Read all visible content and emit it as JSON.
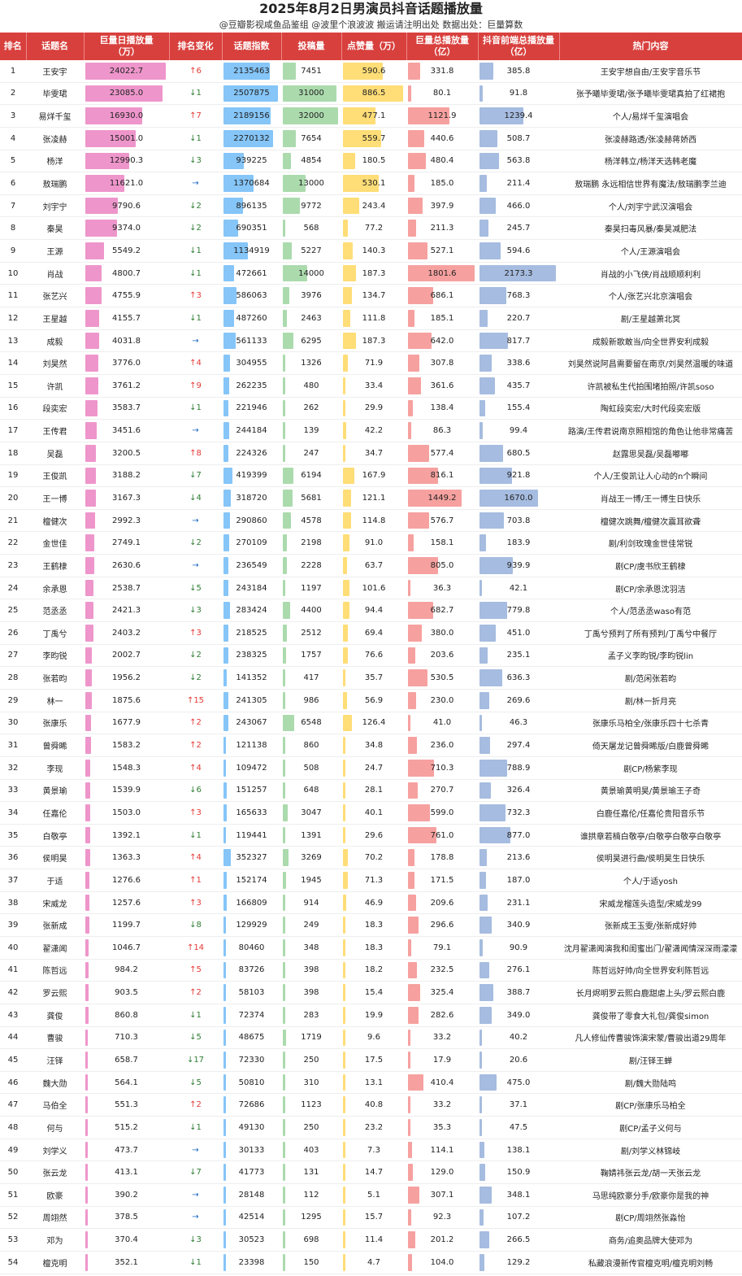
{
  "title": "2025年8月2日男演员抖音话题播放量",
  "subtitle": "@豆瓣影视咸鱼品鉴组 @波里个浪波波   搬运请注明出处   数据出处：巨量算数",
  "headers": [
    "排名",
    "话题名",
    "巨量日播放量\n（万）",
    "排名变化",
    "话题指数",
    "投稿量",
    "点赞量（万）",
    "巨量总播放量\n（亿）",
    "抖音前端总播放量\n（亿）",
    "热门内容"
  ],
  "colors": {
    "header": "#d8403d",
    "daily": "#e040a0",
    "index": "#2196f3",
    "posts": "#66bb6a",
    "likes": "#ffc107",
    "total": "#ef5350",
    "front": "#5c85c7"
  },
  "rows": [
    [
      "1",
      "王安宇",
      "24022.7",
      "↑6",
      "2135463",
      "7451",
      "590.6",
      "331.8",
      "385.8",
      "王安宇想自由/王安宇音乐节"
    ],
    [
      "2",
      "毕雯珺",
      "23085.0",
      "↓1",
      "2507875",
      "31000",
      "886.5",
      "80.1",
      "91.8",
      "张予曦毕雯珺/张予曦毕雯珺真拍了红裙抱"
    ],
    [
      "3",
      "易烊千玺",
      "16930.0",
      "↑7",
      "2189156",
      "32000",
      "477.1",
      "1121.9",
      "1239.4",
      "个人/易烊千玺演唱会"
    ],
    [
      "4",
      "张凌赫",
      "15001.0",
      "↓1",
      "2270132",
      "7654",
      "559.7",
      "440.6",
      "508.7",
      "张凌赫路透/张凌赫蒋娇西"
    ],
    [
      "5",
      "杨洋",
      "12990.3",
      "↓3",
      "939225",
      "4854",
      "180.5",
      "480.4",
      "563.8",
      "杨洋韩立/杨洋天选韩老魔"
    ],
    [
      "6",
      "敖瑞鹏",
      "11621.0",
      "→",
      "1370684",
      "13000",
      "530.1",
      "185.0",
      "211.4",
      "敖瑞鹏 永远相信世界有魔法/敖瑞鹏李兰迪"
    ],
    [
      "7",
      "刘宇宁",
      "9790.6",
      "↓2",
      "896135",
      "9772",
      "243.4",
      "397.9",
      "466.0",
      "个人/刘宇宁武汉演唱会"
    ],
    [
      "8",
      "秦昊",
      "9374.0",
      "↓2",
      "690351",
      "568",
      "77.2",
      "211.3",
      "245.7",
      "秦昊扫毒风暴/秦昊减肥法"
    ],
    [
      "9",
      "王源",
      "5549.2",
      "↓1",
      "1134919",
      "5227",
      "140.3",
      "527.1",
      "594.6",
      "个人/王源演唱会"
    ],
    [
      "10",
      "肖战",
      "4800.7",
      "↓1",
      "472661",
      "14000",
      "187.3",
      "1801.6",
      "2173.3",
      "肖战的小飞侠/肖战顺顺利利"
    ],
    [
      "11",
      "张艺兴",
      "4755.9",
      "↑3",
      "586063",
      "3976",
      "134.7",
      "686.1",
      "768.3",
      "个人/张艺兴北京演唱会"
    ],
    [
      "12",
      "王星越",
      "4155.7",
      "↓1",
      "487260",
      "2463",
      "111.8",
      "185.1",
      "220.7",
      "剧/王星越萧北冥"
    ],
    [
      "13",
      "成毅",
      "4031.8",
      "→",
      "561133",
      "6295",
      "187.3",
      "642.0",
      "817.7",
      "成毅新歌敢当/向全世界安利成毅"
    ],
    [
      "14",
      "刘昊然",
      "3776.0",
      "↑4",
      "304955",
      "1326",
      "71.9",
      "307.8",
      "338.6",
      "刘昊然说阿昌需要留在南京/刘昊然温暖的味道"
    ],
    [
      "15",
      "许凯",
      "3761.2",
      "↑9",
      "262235",
      "480",
      "33.4",
      "361.6",
      "435.7",
      "许凯被私生代拍围堵拍照/许凯soso"
    ],
    [
      "16",
      "段奕宏",
      "3583.7",
      "↓1",
      "221946",
      "262",
      "29.9",
      "138.4",
      "155.4",
      "陶虹段奕宏/大时代段奕宏版"
    ],
    [
      "17",
      "王传君",
      "3451.6",
      "→",
      "244184",
      "139",
      "42.2",
      "86.3",
      "99.4",
      "路演/王传君说南京照相馆的角色让他非常痛苦"
    ],
    [
      "18",
      "吴磊",
      "3200.5",
      "↑8",
      "224326",
      "247",
      "34.7",
      "577.4",
      "680.5",
      "赵露思吴磊/吴磊嘟嘟"
    ],
    [
      "19",
      "王俊凯",
      "3188.2",
      "↓7",
      "419399",
      "6194",
      "167.9",
      "816.1",
      "921.8",
      "个人/王俊凯让人心动的n个瞬间"
    ],
    [
      "20",
      "王一博",
      "3167.3",
      "↓4",
      "318720",
      "5681",
      "121.1",
      "1449.2",
      "1670.0",
      "肖战王一博/王一博生日快乐"
    ],
    [
      "21",
      "檀健次",
      "2992.3",
      "→",
      "290860",
      "4578",
      "114.8",
      "576.7",
      "703.8",
      "檀健次跳舞/檀健次震耳欲聋"
    ],
    [
      "22",
      "金世佳",
      "2749.1",
      "↓2",
      "270109",
      "2198",
      "91.0",
      "158.1",
      "183.9",
      "剧/利剑玫瑰金世佳常锐"
    ],
    [
      "23",
      "王鹤棣",
      "2630.6",
      "→",
      "236549",
      "2228",
      "63.7",
      "805.0",
      "939.9",
      "剧CP/虞书欣王鹤棣"
    ],
    [
      "24",
      "余承恩",
      "2538.7",
      "↓5",
      "243184",
      "1197",
      "101.6",
      "36.3",
      "42.1",
      "剧CP/余承恩沈羽洁"
    ],
    [
      "25",
      "范丞丞",
      "2421.3",
      "↓3",
      "283424",
      "4400",
      "94.4",
      "682.7",
      "779.8",
      "个人/范丞丞waso有范"
    ],
    [
      "26",
      "丁禹兮",
      "2403.2",
      "↑3",
      "218525",
      "2512",
      "69.4",
      "380.0",
      "451.0",
      "丁禹兮预判了所有预判/丁禹兮中餐厅"
    ],
    [
      "27",
      "李昀锐",
      "2002.7",
      "↓2",
      "238325",
      "1757",
      "76.6",
      "203.6",
      "235.1",
      "孟子义李昀锐/李昀锐lin"
    ],
    [
      "28",
      "张若昀",
      "1956.2",
      "↓2",
      "141352",
      "417",
      "35.7",
      "530.5",
      "636.3",
      "剧/范闲张若昀"
    ],
    [
      "29",
      "林一",
      "1875.6",
      "↑15",
      "241305",
      "986",
      "56.9",
      "230.0",
      "269.6",
      "剧/林一折月亮"
    ],
    [
      "30",
      "张康乐",
      "1677.9",
      "↑2",
      "243067",
      "6548",
      "126.4",
      "41.0",
      "46.3",
      "张康乐马柏全/张康乐四十七杀青"
    ],
    [
      "31",
      "曾舜晞",
      "1583.2",
      "↑2",
      "121138",
      "860",
      "34.8",
      "236.0",
      "297.4",
      "倚天屠龙记曾舜晞版/白鹿曾舜晞"
    ],
    [
      "32",
      "李现",
      "1548.3",
      "↑4",
      "109472",
      "508",
      "24.7",
      "710.3",
      "788.9",
      "剧CP/杨紫李现"
    ],
    [
      "33",
      "黄景瑜",
      "1539.9",
      "↓6",
      "151257",
      "648",
      "28.1",
      "270.7",
      "326.4",
      "黄景瑜黄明昊/黄景瑜王子奇"
    ],
    [
      "34",
      "任嘉伦",
      "1503.0",
      "↑3",
      "165633",
      "3047",
      "40.1",
      "599.0",
      "732.3",
      "白鹿任嘉伦/任嘉伦贵阳音乐节"
    ],
    [
      "35",
      "白敬亭",
      "1392.1",
      "↓1",
      "119441",
      "1391",
      "29.6",
      "761.0",
      "877.0",
      "谁拱章若楠白敬亭/白敬亭白敬亭白敬亭"
    ],
    [
      "36",
      "侯明昊",
      "1363.3",
      "↑4",
      "352327",
      "3269",
      "70.2",
      "178.8",
      "213.6",
      "侯明昊进行曲/侯明昊生日快乐"
    ],
    [
      "37",
      "于适",
      "1276.6",
      "↑1",
      "152174",
      "1945",
      "71.3",
      "171.5",
      "187.0",
      "个人/于适yosh"
    ],
    [
      "38",
      "宋威龙",
      "1257.6",
      "↑3",
      "166809",
      "914",
      "46.9",
      "209.6",
      "231.1",
      "宋威龙榴莲头造型/宋威龙99"
    ],
    [
      "39",
      "张新成",
      "1199.7",
      "↓8",
      "129929",
      "249",
      "18.3",
      "296.6",
      "340.9",
      "张新成王玉雯/张新成好帅"
    ],
    [
      "40",
      "翟潇闻",
      "1046.7",
      "↑14",
      "80460",
      "348",
      "18.3",
      "79.1",
      "90.9",
      "沈月翟潇闻演我和闺蜜出门/翟潇闻情深深雨濛濛"
    ],
    [
      "41",
      "陈哲远",
      "984.2",
      "↑5",
      "83726",
      "398",
      "18.2",
      "232.5",
      "276.1",
      "陈哲远好帅/向全世界安利陈哲远"
    ],
    [
      "42",
      "罗云熙",
      "903.5",
      "↑2",
      "58103",
      "398",
      "15.4",
      "325.4",
      "388.7",
      "长月烬明罗云熙白鹿甜虐上头/罗云熙白鹿"
    ],
    [
      "43",
      "龚俊",
      "860.8",
      "↓1",
      "72374",
      "283",
      "19.9",
      "282.6",
      "349.0",
      "龚俊带了零食大礼包/龚俊simon"
    ],
    [
      "44",
      "曹骏",
      "710.3",
      "↓5",
      "48675",
      "1719",
      "9.6",
      "33.2",
      "40.2",
      "凡人修仙传曹骏饰演宋蒙/曹骏出道29周年"
    ],
    [
      "45",
      "汪铎",
      "658.7",
      "↓17",
      "72330",
      "250",
      "17.5",
      "17.9",
      "20.6",
      "剧/汪铎王蝉"
    ],
    [
      "46",
      "魏大勋",
      "564.1",
      "↓5",
      "50810",
      "310",
      "13.1",
      "410.4",
      "475.0",
      "剧/魏大勋陆鸣"
    ],
    [
      "47",
      "马伯全",
      "551.3",
      "↑2",
      "72686",
      "1123",
      "40.8",
      "33.2",
      "37.1",
      "剧CP/张康乐马柏全"
    ],
    [
      "48",
      "何与",
      "515.2",
      "↓1",
      "49130",
      "250",
      "23.2",
      "35.3",
      "47.5",
      "剧CP/孟子义何与"
    ],
    [
      "49",
      "刘学义",
      "473.7",
      "→",
      "30133",
      "403",
      "7.3",
      "114.1",
      "138.1",
      "剧/刘学义林锦岐"
    ],
    [
      "50",
      "张云龙",
      "413.1",
      "↓7",
      "41773",
      "131",
      "14.7",
      "129.0",
      "150.9",
      "鞠婧祎张云龙/胡一天张云龙"
    ],
    [
      "51",
      "欧豪",
      "390.2",
      "→",
      "28148",
      "112",
      "5.1",
      "307.1",
      "348.1",
      "马思纯欧豪分手/欧豪你是我的神"
    ],
    [
      "52",
      "周翊然",
      "378.5",
      "→",
      "42514",
      "1295",
      "15.7",
      "92.3",
      "107.2",
      "剧CP/周翊然张淼怡"
    ],
    [
      "53",
      "邓为",
      "370.4",
      "↓3",
      "30523",
      "698",
      "11.4",
      "201.2",
      "266.5",
      "商务/追奥品牌大使邓为"
    ],
    [
      "54",
      "檀克明",
      "352.1",
      "↓1",
      "23398",
      "150",
      "4.7",
      "104.0",
      "129.2",
      "私藏浪漫新传官檀克明/檀克明刘畅"
    ]
  ]
}
